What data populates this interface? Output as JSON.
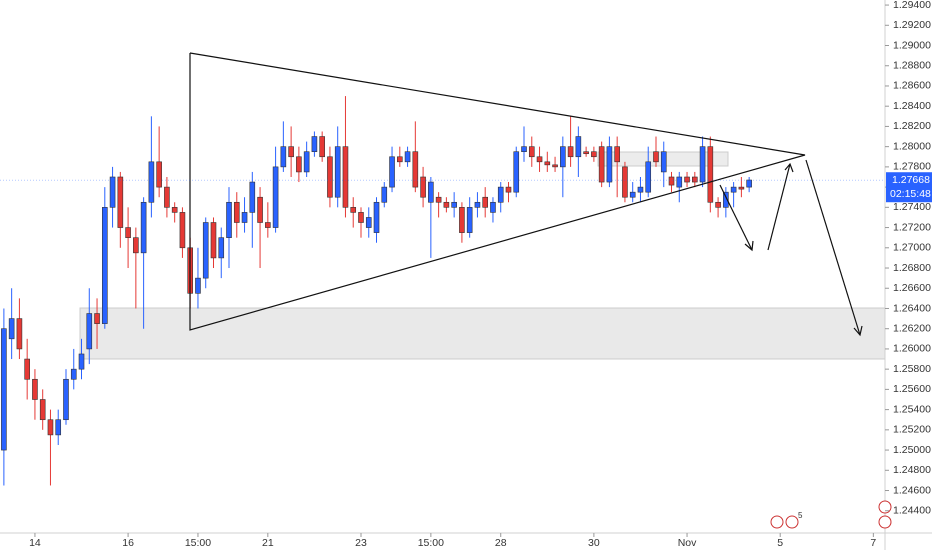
{
  "chart_data": {
    "type": "candlestick",
    "x": [
      0,
      1,
      2,
      3,
      4,
      5,
      6,
      7,
      8,
      9,
      10,
      11,
      12,
      13,
      14,
      15,
      16,
      17,
      18,
      19,
      20,
      21,
      22,
      23,
      24,
      25,
      26,
      27,
      28,
      29,
      30,
      31,
      32,
      33,
      34,
      35,
      36,
      37,
      38,
      39,
      40,
      41,
      42,
      43,
      44,
      45,
      46,
      47,
      48,
      49,
      50,
      51,
      52,
      53,
      54,
      55,
      56,
      57,
      58,
      59,
      60,
      61,
      62,
      63,
      64,
      65,
      66,
      67,
      68,
      69,
      70,
      71,
      72,
      73,
      74,
      75,
      76,
      77,
      78,
      79,
      80,
      81,
      82,
      83,
      84,
      85,
      86,
      87,
      88,
      89,
      90,
      91,
      92,
      93,
      94,
      95,
      96
    ],
    "open": [
      1.25,
      1.261,
      1.263,
      1.259,
      1.257,
      1.255,
      1.253,
      1.2515,
      1.253,
      1.257,
      1.258,
      1.26,
      1.2635,
      1.2625,
      1.274,
      1.277,
      1.272,
      1.271,
      1.2695,
      1.2745,
      1.2785,
      1.276,
      1.274,
      1.2735,
      1.27,
      1.2655,
      1.267,
      1.2725,
      1.269,
      1.271,
      1.2745,
      1.2725,
      1.2735,
      1.275,
      1.2725,
      1.272,
      1.278,
      1.28,
      1.279,
      1.2775,
      1.2795,
      1.281,
      1.279,
      1.275,
      1.28,
      1.274,
      1.2735,
      1.272,
      1.2715,
      1.2745,
      1.276,
      1.279,
      1.2785,
      1.2795,
      1.277,
      1.2745,
      1.275,
      1.2745,
      1.274,
      1.274,
      1.2715,
      1.274,
      1.275,
      1.2735,
      1.2745,
      1.276,
      1.2755,
      1.2795,
      1.28,
      1.279,
      1.2785,
      1.2782,
      1.278,
      1.28,
      1.279,
      1.2795,
      1.2795,
      1.28,
      1.2765,
      1.28,
      1.278,
      1.275,
      1.2755,
      1.2755,
      1.2795,
      1.2775,
      1.277,
      1.276,
      1.277,
      1.277,
      1.2765,
      1.28,
      1.2745,
      1.274,
      1.2755,
      1.276,
      1.276
    ],
    "high": [
      1.264,
      1.266,
      1.265,
      1.261,
      1.258,
      1.256,
      1.254,
      1.254,
      1.258,
      1.26,
      1.261,
      1.266,
      1.265,
      1.276,
      1.278,
      1.2775,
      1.274,
      1.272,
      1.275,
      1.283,
      1.282,
      1.277,
      1.2745,
      1.274,
      1.271,
      1.27,
      1.273,
      1.273,
      1.272,
      1.276,
      1.2755,
      1.275,
      1.2775,
      1.276,
      1.2745,
      1.28,
      1.2825,
      1.282,
      1.28,
      1.2805,
      1.2815,
      1.2815,
      1.28,
      1.282,
      1.285,
      1.275,
      1.274,
      1.274,
      1.275,
      1.2765,
      1.28,
      1.28,
      1.28,
      1.2825,
      1.278,
      1.277,
      1.2755,
      1.275,
      1.2755,
      1.2745,
      1.275,
      1.2755,
      1.276,
      1.275,
      1.2765,
      1.2765,
      1.28,
      1.282,
      1.281,
      1.28,
      1.2795,
      1.279,
      1.281,
      1.283,
      1.282,
      1.28,
      1.28,
      1.2805,
      1.281,
      1.281,
      1.2785,
      1.2765,
      1.277,
      1.28,
      1.281,
      1.2805,
      1.2775,
      1.2775,
      1.2775,
      1.2775,
      1.281,
      1.281,
      1.275,
      1.276,
      1.2765,
      1.277,
      1.277
    ],
    "low": [
      1.2465,
      1.259,
      1.259,
      1.255,
      1.253,
      1.252,
      1.2465,
      1.2505,
      1.2525,
      1.256,
      1.257,
      1.2585,
      1.26,
      1.262,
      1.272,
      1.27,
      1.268,
      1.264,
      1.262,
      1.273,
      1.275,
      1.273,
      1.2725,
      1.269,
      1.264,
      1.264,
      1.266,
      1.268,
      1.267,
      1.268,
      1.271,
      1.2715,
      1.27,
      1.268,
      1.271,
      1.2715,
      1.2775,
      1.277,
      1.2765,
      1.277,
      1.279,
      1.2785,
      1.274,
      1.274,
      1.273,
      1.272,
      1.271,
      1.271,
      1.2705,
      1.274,
      1.2755,
      1.278,
      1.278,
      1.2755,
      1.274,
      1.269,
      1.273,
      1.2735,
      1.273,
      1.2705,
      1.271,
      1.273,
      1.273,
      1.2725,
      1.2735,
      1.2745,
      1.275,
      1.2785,
      1.278,
      1.2775,
      1.2775,
      1.2775,
      1.275,
      1.278,
      1.277,
      1.279,
      1.2785,
      1.276,
      1.276,
      1.275,
      1.2745,
      1.2745,
      1.2745,
      1.275,
      1.278,
      1.276,
      1.2755,
      1.2745,
      1.276,
      1.276,
      1.276,
      1.2735,
      1.273,
      1.273,
      1.274,
      1.275,
      1.2755
    ],
    "close": [
      1.262,
      1.263,
      1.26,
      1.257,
      1.255,
      1.253,
      1.2515,
      1.253,
      1.257,
      1.258,
      1.2595,
      1.2635,
      1.2625,
      1.274,
      1.277,
      1.272,
      1.271,
      1.2695,
      1.2745,
      1.2785,
      1.276,
      1.274,
      1.2735,
      1.27,
      1.2655,
      1.267,
      1.2725,
      1.269,
      1.271,
      1.2745,
      1.2725,
      1.2735,
      1.2765,
      1.2725,
      1.272,
      1.278,
      1.28,
      1.279,
      1.2775,
      1.2795,
      1.281,
      1.279,
      1.275,
      1.28,
      1.274,
      1.2735,
      1.2725,
      1.273,
      1.2745,
      1.276,
      1.279,
      1.2785,
      1.2795,
      1.276,
      1.275,
      1.2765,
      1.2745,
      1.274,
      1.2745,
      1.2715,
      1.274,
      1.2745,
      1.274,
      1.2745,
      1.276,
      1.2755,
      1.2795,
      1.28,
      1.279,
      1.2785,
      1.2782,
      1.278,
      1.28,
      1.279,
      1.281,
      1.2793,
      1.279,
      1.2765,
      1.28,
      1.2785,
      1.275,
      1.2755,
      1.276,
      1.2785,
      1.2785,
      1.2795,
      1.2762,
      1.277,
      1.2765,
      1.2765,
      1.28,
      1.2745,
      1.274,
      1.2755,
      1.276,
      1.2758,
      1.2767
    ],
    "up_color": "#2962ff",
    "down_color": "#e53935",
    "xlim": [
      -0.5,
      113.5
    ],
    "xticks": [
      {
        "value": 4,
        "label": "14"
      },
      {
        "value": 16,
        "label": "16"
      },
      {
        "value": 25,
        "label": "15:00"
      },
      {
        "value": 34,
        "label": "21"
      },
      {
        "value": 46,
        "label": "23"
      },
      {
        "value": 55,
        "label": "15:00"
      },
      {
        "value": 64,
        "label": "28"
      },
      {
        "value": 76,
        "label": "30"
      },
      {
        "value": 88,
        "label": "Nov"
      },
      {
        "value": 100,
        "label": "5"
      },
      {
        "value": 112,
        "label": "7"
      }
    ],
    "ylim": [
      1.2418,
      1.2945
    ],
    "yticks": [
      {
        "value": 1.244,
        "label": "1.24400"
      },
      {
        "value": 1.246,
        "label": "1.24600"
      },
      {
        "value": 1.248,
        "label": "1.24800"
      },
      {
        "value": 1.25,
        "label": "1.25000"
      },
      {
        "value": 1.252,
        "label": "1.25200"
      },
      {
        "value": 1.254,
        "label": "1.25400"
      },
      {
        "value": 1.256,
        "label": "1.25600"
      },
      {
        "value": 1.258,
        "label": "1.25800"
      },
      {
        "value": 1.26,
        "label": "1.26000"
      },
      {
        "value": 1.262,
        "label": "1.26200"
      },
      {
        "value": 1.264,
        "label": "1.26400"
      },
      {
        "value": 1.266,
        "label": "1.26600"
      },
      {
        "value": 1.268,
        "label": "1.26800"
      },
      {
        "value": 1.27,
        "label": "1.27000"
      },
      {
        "value": 1.272,
        "label": "1.27200"
      },
      {
        "value": 1.274,
        "label": "1.27400"
      },
      {
        "value": 1.276,
        "label": "1.27600"
      },
      {
        "value": 1.278,
        "label": "1.27800"
      },
      {
        "value": 1.28,
        "label": "1.28000"
      },
      {
        "value": 1.282,
        "label": "1.28200"
      },
      {
        "value": 1.284,
        "label": "1.28400"
      },
      {
        "value": 1.286,
        "label": "1.28600"
      },
      {
        "value": 1.288,
        "label": "1.28800"
      },
      {
        "value": 1.29,
        "label": "1.29000"
      },
      {
        "value": 1.292,
        "label": "1.29200"
      },
      {
        "value": 1.294,
        "label": "1.29400"
      }
    ],
    "last_price": 1.27668,
    "last_price_color": "#2962ff",
    "countdown": "02:15:48",
    "events_badge": 5
  }
}
